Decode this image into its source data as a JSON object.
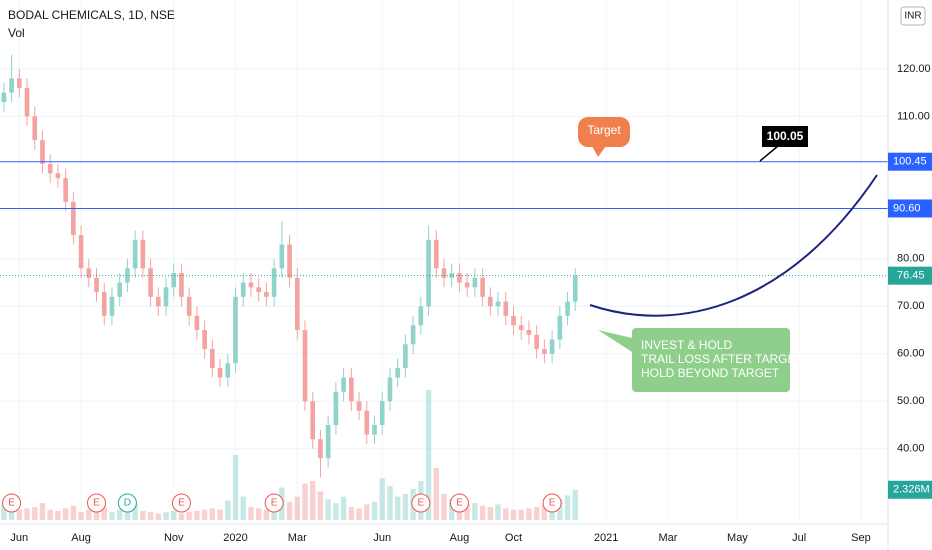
{
  "chart_data": {
    "type": "candlestick",
    "title": "BODAL CHEMICALS, 1D, NSE",
    "volume_title": "Vol",
    "currency": "INR",
    "categories": [
      null,
      null,
      "Jun",
      null,
      null,
      null,
      null,
      null,
      null,
      null,
      "Aug",
      null,
      null,
      null,
      null,
      null,
      null,
      null,
      null,
      null,
      null,
      null,
      "Nov",
      null,
      null,
      null,
      null,
      null,
      null,
      null,
      "2020",
      null,
      null,
      null,
      null,
      null,
      null,
      null,
      "Mar",
      null,
      null,
      null,
      null,
      null,
      null,
      null,
      null,
      null,
      null,
      "Jun",
      null,
      null,
      null,
      null,
      null,
      null,
      null,
      null,
      null,
      "Aug",
      null,
      null,
      null,
      null,
      null,
      null,
      "Oct",
      null,
      null,
      null,
      null,
      null,
      null,
      null,
      null,
      null,
      null,
      null,
      "2021",
      null,
      null,
      null,
      null,
      null,
      null,
      null,
      "Mar",
      null,
      null,
      null,
      null,
      null,
      null,
      null,
      null,
      "May",
      null,
      null,
      null,
      null,
      null,
      null,
      null,
      "Jul",
      null,
      null,
      null,
      null,
      null,
      null,
      null,
      "Sep",
      null,
      null,
      null
    ],
    "open": [
      113,
      115,
      118,
      116,
      110,
      105,
      100,
      98,
      97,
      92,
      85,
      78,
      76,
      73,
      68,
      72,
      75,
      78,
      84,
      78,
      72,
      70,
      74,
      77,
      72,
      68,
      65,
      61,
      57,
      55,
      58,
      72,
      75,
      74,
      73,
      72,
      78,
      83,
      76,
      65,
      50,
      42,
      38,
      45,
      52,
      55,
      50,
      48,
      43,
      45,
      50,
      55,
      57,
      62,
      66,
      70,
      84,
      78,
      76,
      77,
      75,
      74,
      76,
      72,
      70,
      71,
      68,
      66,
      65,
      64,
      61,
      60,
      63,
      68,
      71,
      null,
      null,
      null,
      null,
      null,
      null,
      null,
      null,
      null,
      null,
      null,
      null,
      null,
      null,
      null,
      null,
      null,
      null,
      null,
      null,
      null,
      null,
      null,
      null,
      null,
      null,
      null,
      null,
      null,
      null,
      null,
      null,
      null,
      null,
      null,
      null,
      null,
      null,
      null,
      null
    ],
    "high": [
      117,
      123,
      120,
      118,
      112,
      107,
      102,
      100,
      99,
      94,
      87,
      80,
      78,
      75,
      74,
      77,
      80,
      86,
      86,
      80,
      74,
      76,
      79,
      79,
      74,
      70,
      67,
      63,
      59,
      60,
      74,
      77,
      77,
      76,
      75,
      80,
      88,
      85,
      78,
      67,
      52,
      44,
      47,
      54,
      57,
      57,
      52,
      50,
      47,
      52,
      57,
      59,
      64,
      68,
      72,
      87,
      86,
      80,
      79,
      79,
      77,
      78,
      78,
      74,
      73,
      73,
      70,
      68,
      67,
      66,
      63,
      65,
      70,
      73,
      78,
      null,
      null,
      null,
      null,
      null,
      null,
      null,
      null,
      null,
      null,
      null,
      null,
      null,
      null,
      null,
      null,
      null,
      null,
      null,
      null,
      null,
      null,
      null,
      null,
      null,
      null,
      null,
      null,
      null,
      null,
      null,
      null,
      null,
      null,
      null,
      null,
      null,
      null,
      null,
      null
    ],
    "low": [
      111,
      113,
      114,
      108,
      103,
      98,
      96,
      95,
      90,
      83,
      76,
      74,
      71,
      66,
      66,
      70,
      73,
      76,
      76,
      70,
      68,
      68,
      72,
      70,
      66,
      63,
      59,
      55,
      53,
      53,
      56,
      70,
      72,
      71,
      70,
      70,
      76,
      74,
      63,
      48,
      40,
      34,
      36,
      43,
      50,
      48,
      46,
      41,
      41,
      43,
      48,
      53,
      55,
      60,
      64,
      68,
      76,
      74,
      74,
      73,
      72,
      72,
      70,
      68,
      68,
      66,
      64,
      63,
      62,
      59,
      58,
      58,
      61,
      66,
      69,
      null,
      null,
      null,
      null,
      null,
      null,
      null,
      null,
      null,
      null,
      null,
      null,
      null,
      null,
      null,
      null,
      null,
      null,
      null,
      null,
      null,
      null,
      null,
      null,
      null,
      null,
      null,
      null,
      null,
      null,
      null,
      null,
      null,
      null,
      null,
      null,
      null,
      null,
      null,
      null
    ],
    "close": [
      115,
      118,
      116,
      110,
      105,
      100,
      98,
      97,
      92,
      85,
      78,
      76,
      73,
      68,
      72,
      75,
      78,
      84,
      78,
      72,
      70,
      74,
      77,
      72,
      68,
      65,
      61,
      57,
      55,
      58,
      72,
      75,
      74,
      73,
      72,
      78,
      83,
      76,
      65,
      50,
      42,
      38,
      45,
      52,
      55,
      50,
      48,
      43,
      45,
      50,
      55,
      57,
      62,
      66,
      70,
      84,
      78,
      76,
      77,
      75,
      74,
      76,
      72,
      70,
      71,
      68,
      66,
      65,
      64,
      61,
      60,
      63,
      68,
      71,
      76.45,
      null,
      null,
      null,
      null,
      null,
      null,
      null,
      null,
      null,
      null,
      null,
      null,
      null,
      null,
      null,
      null,
      null,
      null,
      null,
      null,
      null,
      null,
      null,
      null,
      null,
      null,
      null,
      null,
      null,
      null,
      null,
      null,
      null,
      null,
      null,
      null,
      null,
      null,
      null,
      null
    ],
    "volume": [
      1.2,
      1.5,
      0.8,
      0.9,
      1.0,
      1.3,
      0.8,
      0.7,
      0.9,
      1.1,
      0.6,
      0.8,
      0.7,
      1.0,
      0.6,
      0.8,
      0.9,
      1.2,
      0.7,
      0.6,
      0.5,
      0.6,
      0.7,
      0.5,
      0.6,
      0.7,
      0.8,
      0.9,
      0.8,
      1.5,
      5.0,
      1.8,
      1.0,
      0.9,
      0.8,
      1.6,
      2.5,
      1.4,
      1.8,
      2.8,
      3.0,
      2.2,
      1.6,
      1.3,
      1.8,
      1.0,
      0.9,
      1.2,
      1.4,
      3.2,
      2.6,
      1.8,
      2.0,
      2.4,
      3.0,
      10.0,
      4.0,
      2.0,
      1.6,
      1.4,
      1.2,
      1.3,
      1.1,
      1.0,
      1.2,
      0.9,
      0.8,
      0.8,
      0.9,
      1.0,
      1.1,
      1.3,
      1.6,
      1.9,
      2.326,
      null,
      null,
      null,
      null,
      null,
      null,
      null,
      null,
      null,
      null,
      null,
      null,
      null,
      null,
      null,
      null,
      null,
      null,
      null,
      null,
      null,
      null,
      null,
      null,
      null,
      null,
      null,
      null,
      null,
      null,
      null,
      null,
      null,
      null,
      null,
      null,
      null,
      null,
      null,
      null
    ],
    "volume_last_label": "2.326M",
    "vlim": [
      0,
      40
    ],
    "events": [
      null,
      "E",
      null,
      null,
      null,
      null,
      null,
      null,
      null,
      null,
      null,
      null,
      "E",
      null,
      null,
      null,
      "D",
      null,
      null,
      null,
      null,
      null,
      null,
      "E",
      null,
      null,
      null,
      null,
      null,
      null,
      null,
      null,
      null,
      null,
      null,
      "E",
      null,
      null,
      null,
      null,
      null,
      null,
      null,
      null,
      null,
      null,
      null,
      null,
      null,
      null,
      null,
      null,
      null,
      null,
      "E",
      null,
      null,
      null,
      null,
      "E",
      null,
      null,
      null,
      null,
      null,
      null,
      null,
      null,
      null,
      null,
      null,
      "E",
      null,
      null,
      null,
      null,
      null,
      null,
      null,
      null,
      null,
      null,
      null,
      null,
      null,
      null,
      null,
      null,
      null,
      null,
      null,
      null,
      null,
      null,
      null,
      null,
      null,
      null,
      null,
      null,
      null,
      null,
      null,
      null,
      null,
      null,
      null,
      null,
      null,
      null,
      null,
      null,
      null,
      null,
      null,
      null
    ],
    "up_color": "#8fd3cb",
    "down_color": "#f4a3a1",
    "ylim": [
      25,
      134.5
    ],
    "yticks": [
      {
        "value": 40,
        "label": "40.00"
      },
      {
        "value": 50,
        "label": "50.00"
      },
      {
        "value": 60,
        "label": "60.00"
      },
      {
        "value": 70,
        "label": "70.00"
      },
      {
        "value": 80,
        "label": "80.00"
      },
      {
        "value": 110,
        "label": "110.00"
      },
      {
        "value": 120,
        "label": "120.00"
      }
    ],
    "hlines": [
      {
        "value": 100.45,
        "label": "100.45",
        "color": "#2962ff"
      },
      {
        "value": 90.6,
        "label": "90.60",
        "color": "#2962ff"
      }
    ],
    "last_price_color": "#26a69a",
    "grid": true,
    "annotations": {
      "target": "Target",
      "price_callout": 100.05,
      "note_lines": [
        "INVEST & HOLD",
        "TRAIL LOSS AFTER TARGET",
        "HOLD BEYOND TARGET"
      ]
    }
  }
}
